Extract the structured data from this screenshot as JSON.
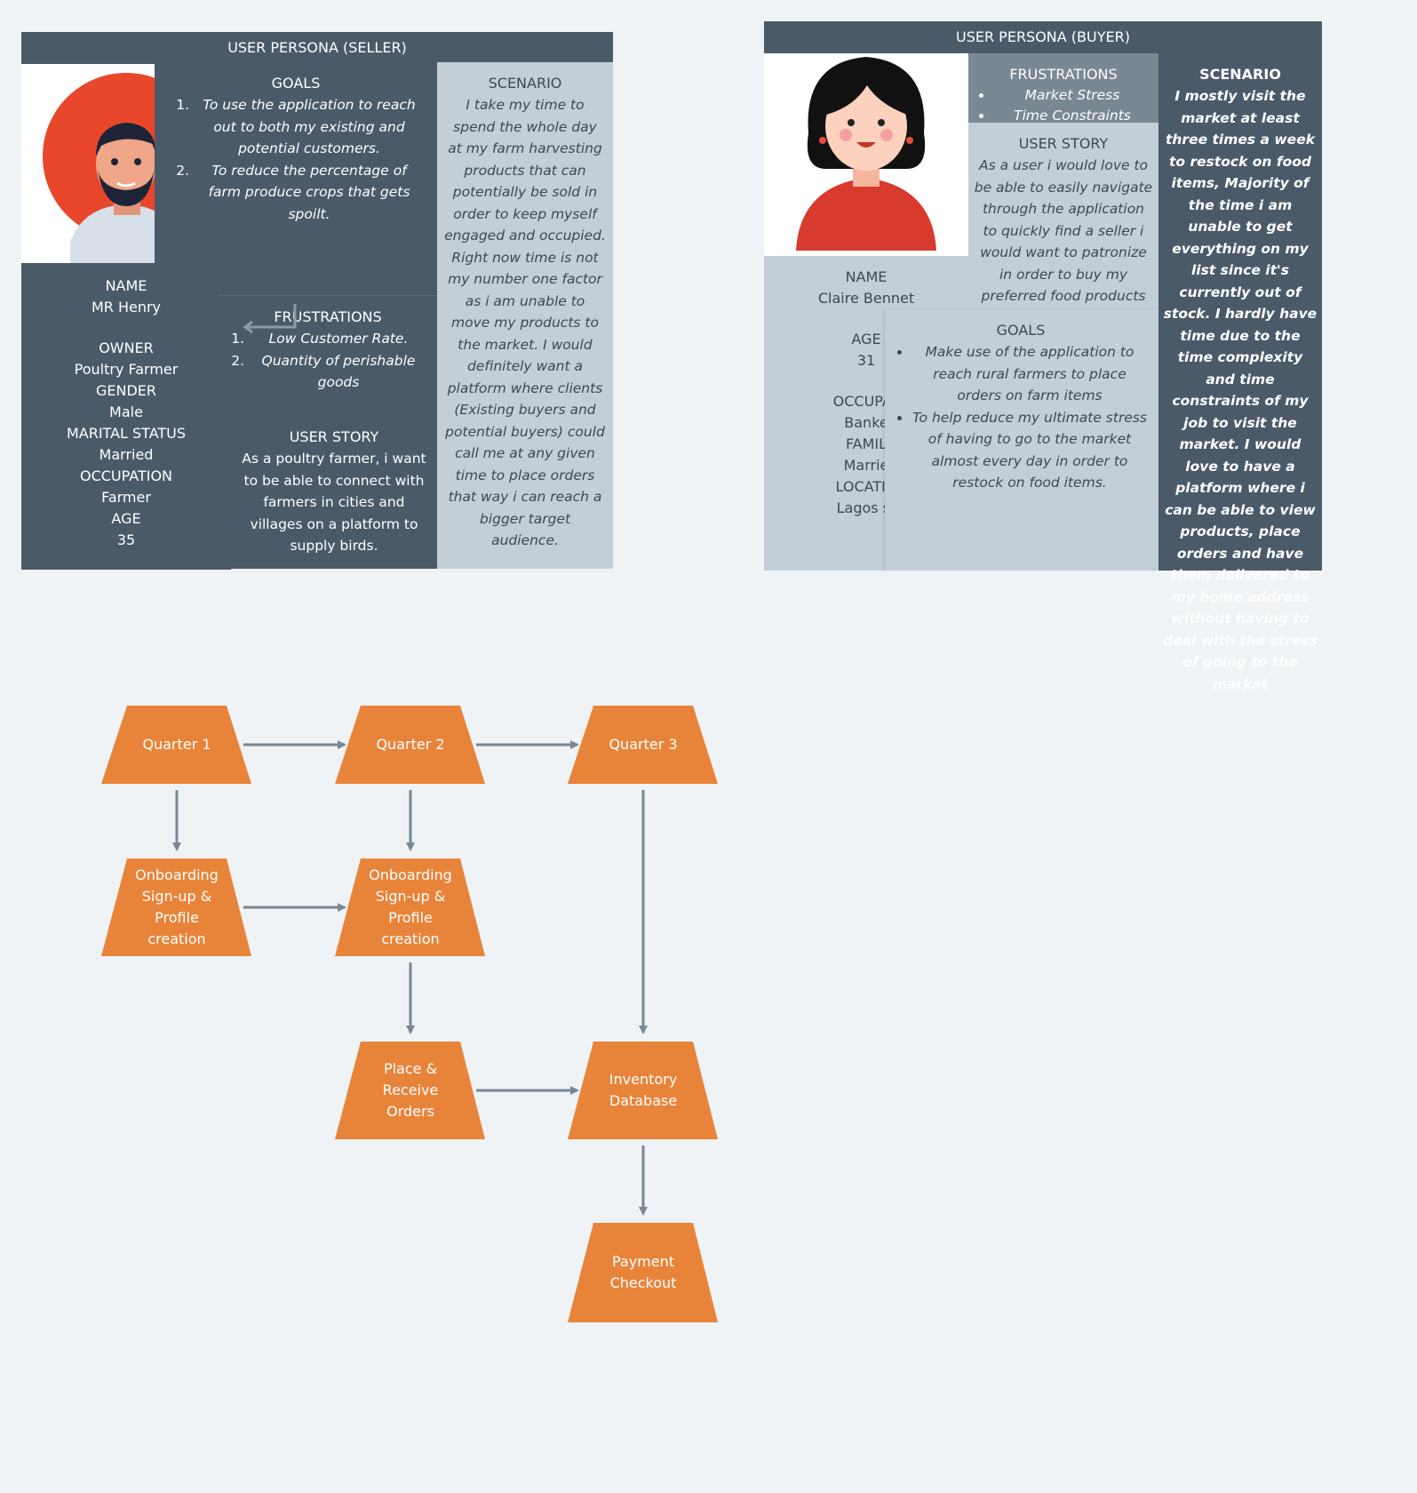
{
  "seller": {
    "header": "USER PERSONA (SELLER)",
    "goals": {
      "title": "GOALS",
      "items": [
        "To use the application to reach out to both my existing and potential customers.",
        "To reduce the percentage of farm produce crops that gets spoilt."
      ]
    },
    "scenario": {
      "title": "SCENARIO",
      "text": "I take my time to spend the whole day at my farm harvesting products that can potentially be sold in order to keep myself engaged and occupied. Right now time is not my number one factor as i am unable to move my products to the market. I would definitely want a platform where clients (Existing buyers and potential buyers) could call me at any given time to place orders that way i can reach a bigger target audience."
    },
    "profile": {
      "name_label": "NAME",
      "name": "MR Henry",
      "owner_label": "OWNER",
      "owner": "Poultry Farmer",
      "gender_label": "GENDER",
      "gender": "Male",
      "marital_label": "MARITAL STATUS",
      "marital": "Married",
      "occupation_label": "OCCUPATION",
      "occupation": "Farmer",
      "age_label": "AGE",
      "age": "35"
    },
    "frustrations": {
      "title": "FRUSTRATIONS",
      "items": [
        "Low Customer Rate.",
        "Quantity of perishable goods"
      ]
    },
    "user_story": {
      "title": "USER STORY",
      "text": "As a poultry farmer, i want to be able to connect with farmers in cities and villages on a platform to supply birds."
    }
  },
  "buyer": {
    "header": "USER PERSONA (BUYER)",
    "frustrations": {
      "title": "FRUSTRATIONS",
      "items": [
        "Market Stress",
        "Time Constraints"
      ]
    },
    "user_story": {
      "title": "USER STORY",
      "text": "As a user i would love to be able to easily navigate through the application to quickly find a seller i would want to patronize in order to buy my preferred food products"
    },
    "scenario": {
      "title": "SCENARIO",
      "text": "I mostly visit the market at least three times a week to restock on food items, Majority of the time i am unable to get everything on my list since it's currently out of stock. I hardly have time due to the time complexity and time constraints of my job to visit the market. I would love to have a platform where i can be able to view products, place orders and have them delivered to my home address  without having to deal with the stress of going to the market"
    },
    "profile": {
      "name_label": "NAME",
      "name": "Claire Bennet",
      "age_label": "AGE",
      "age": "31",
      "occupation_label": "OCCUPAT",
      "occupation": "Banke",
      "family_label": "FAMIL",
      "family": "Marrie",
      "location_label": "LOCATIO",
      "location": "Lagos st"
    },
    "goals": {
      "title": "GOALS",
      "items": [
        "Make use of the application to reach rural farmers to place orders on farm items",
        "To help reduce my ultimate stress of having to go to the market almost every day in order to restock on food items."
      ]
    }
  },
  "flow": {
    "nodes": {
      "q1": "Quarter 1",
      "q2": "Quarter 2",
      "q3": "Quarter 3",
      "onb1": "Onboarding Sign-up & Profile creation",
      "onb2": "Onboarding Sign-up & Profile creation",
      "orders": "Place & Receive Orders",
      "inventory": "Inventory Database",
      "payment": "Payment Checkout"
    }
  },
  "colors": {
    "dark": "#4a5a69",
    "light": "#c3ced7",
    "mid": "#7a8894",
    "node": "#e8843a",
    "arrow": "#7a8794",
    "background": "#eff3f6"
  }
}
